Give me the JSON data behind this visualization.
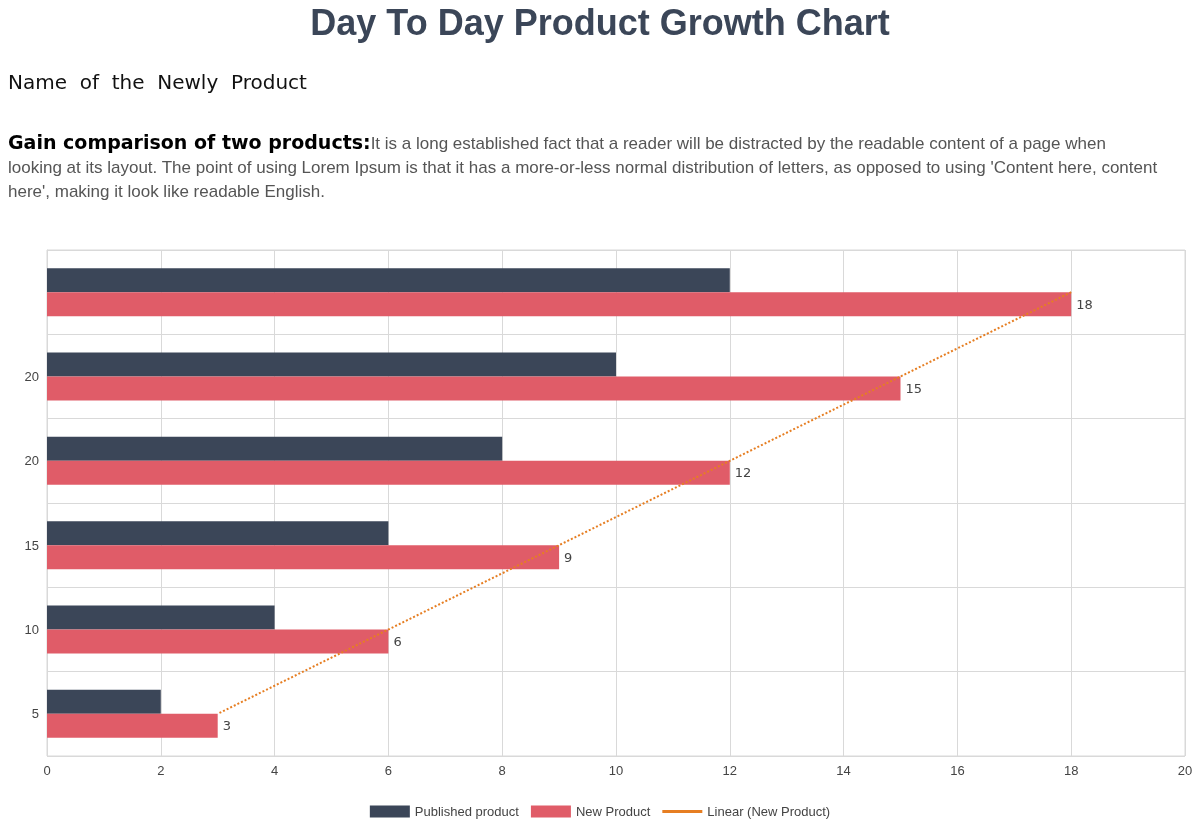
{
  "chart_data": {
    "type": "bar",
    "orientation": "horizontal",
    "title": "Day To Day Product Growth Chart",
    "subtitle": "Name  of  the  Newly  Product",
    "annotations": [
      "Gain comparison of two products:",
      "It is a long established fact that a reader will be distracted by the readable content of a page when looking at its layout. The point of using Lorem Ipsum is that it has a more-or-less normal distribution of letters, as opposed to using 'Content here, content here', making it look like readable English."
    ],
    "categories": [
      null,
      "20",
      "20",
      "15",
      "10",
      "5"
    ],
    "series": [
      {
        "name": "Published product",
        "color": "#3b4658",
        "values": [
          12,
          10,
          8,
          6,
          4,
          2
        ]
      },
      {
        "name": "New Product",
        "color": "#e05c68",
        "values": [
          18,
          15,
          12,
          9,
          6,
          3
        ],
        "value_labels": [
          "18",
          "15",
          "12",
          "9",
          "6",
          "3"
        ]
      },
      {
        "name": "Linear (New Product)",
        "type": "line",
        "color": "#e67e22",
        "line_style": "dotted",
        "marker": "none",
        "values": [
          18,
          15,
          12,
          9,
          6,
          3
        ]
      }
    ],
    "xlim": [
      0,
      20
    ],
    "xticks": [
      0,
      2,
      4,
      6,
      8,
      10,
      12,
      14,
      16,
      18,
      20
    ],
    "grid": true,
    "legend": "bottom"
  }
}
